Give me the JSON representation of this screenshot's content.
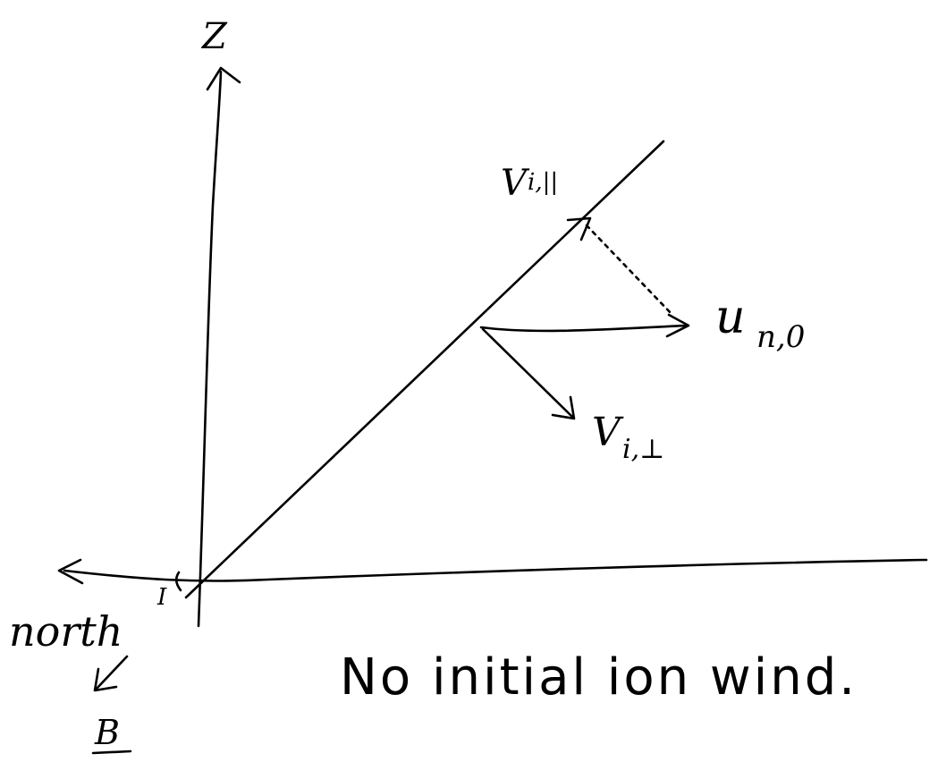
{
  "axes": {
    "z_label": "Z",
    "north_label": "north",
    "b_label": "B",
    "dip_label": "I"
  },
  "vectors": {
    "v_parallel_label": "V",
    "v_parallel_subscript": "i,||",
    "u_label": "u",
    "u_subscript": "n,0",
    "v_perp_label": "V",
    "v_perp_subscript": "i,⊥"
  },
  "caption": "No initial ion wind."
}
